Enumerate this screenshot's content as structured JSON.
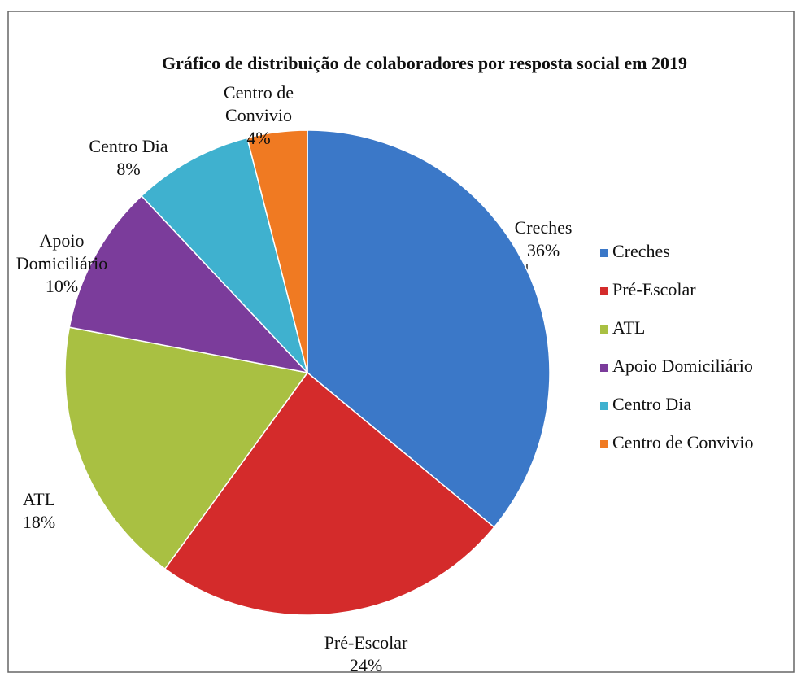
{
  "chart_data": {
    "type": "pie",
    "title": "Gráfico de distribuição  de colaboradores por resposta social em 2019",
    "categories": [
      "Creches",
      "Pré-Escolar",
      "ATL",
      "Apoio Domiciliário",
      "Centro Dia",
      "Centro de Convivio"
    ],
    "values": [
      36,
      24,
      18,
      10,
      8,
      4
    ],
    "value_labels": [
      "36%",
      "24%",
      "18%",
      "10%",
      "8%",
      "4%"
    ],
    "colors": [
      "#3b78c8",
      "#d42b2b",
      "#a9c042",
      "#7b3c9b",
      "#3fb1cf",
      "#f07a22"
    ],
    "legend": "right"
  }
}
